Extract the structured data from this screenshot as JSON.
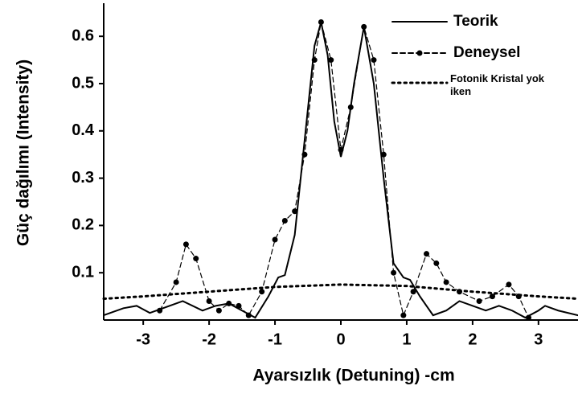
{
  "chart_data": {
    "type": "line",
    "xlabel": "Ayarsızlık (Detuning) -cm",
    "ylabel": "Güç dağılımı (Intensity)",
    "xlim": [
      -3.6,
      3.6
    ],
    "ylim": [
      0,
      0.67
    ],
    "xticks": [
      -3,
      -2,
      -1,
      0,
      1,
      2,
      3
    ],
    "yticks": [
      0.1,
      0.2,
      0.3,
      0.4,
      0.5,
      0.6
    ],
    "legend": "upper right",
    "series": [
      {
        "name": "Teorik",
        "color": "#000000",
        "style": "solid",
        "x": [
          -3.6,
          -3.3,
          -3.1,
          -2.9,
          -2.7,
          -2.4,
          -2.1,
          -1.9,
          -1.7,
          -1.5,
          -1.3,
          -1.1,
          -0.95,
          -0.85,
          -0.7,
          -0.55,
          -0.4,
          -0.3,
          -0.2,
          -0.1,
          0,
          0.1,
          0.2,
          0.35,
          0.5,
          0.65,
          0.8,
          0.95,
          1.05,
          1.2,
          1.4,
          1.6,
          1.8,
          2.0,
          2.2,
          2.4,
          2.6,
          2.8,
          3.0,
          3.1,
          3.3,
          3.6
        ],
        "values": [
          0.01,
          0.025,
          0.03,
          0.015,
          0.025,
          0.04,
          0.02,
          0.03,
          0.035,
          0.02,
          0.005,
          0.05,
          0.09,
          0.095,
          0.18,
          0.38,
          0.58,
          0.63,
          0.56,
          0.42,
          0.345,
          0.4,
          0.5,
          0.62,
          0.5,
          0.3,
          0.12,
          0.09,
          0.085,
          0.05,
          0.01,
          0.02,
          0.04,
          0.03,
          0.02,
          0.03,
          0.02,
          0.005,
          0.02,
          0.03,
          0.02,
          0.01
        ]
      },
      {
        "name": "Deneysel",
        "color": "#000000",
        "style": "dashed",
        "x": [
          -2.75,
          -2.5,
          -2.35,
          -2.2,
          -2.0,
          -1.85,
          -1.7,
          -1.55,
          -1.4,
          -1.2,
          -1.0,
          -0.85,
          -0.7,
          -0.55,
          -0.4,
          -0.3,
          -0.15,
          0,
          0.15,
          0.35,
          0.5,
          0.65,
          0.8,
          0.95,
          1.1,
          1.3,
          1.45,
          1.6,
          1.8,
          2.1,
          2.3,
          2.55,
          2.7,
          2.85
        ],
        "values": [
          0.02,
          0.08,
          0.16,
          0.13,
          0.04,
          0.02,
          0.035,
          0.03,
          0.01,
          0.06,
          0.17,
          0.21,
          0.23,
          0.35,
          0.55,
          0.63,
          0.55,
          0.36,
          0.45,
          0.62,
          0.55,
          0.35,
          0.1,
          0.01,
          0.06,
          0.14,
          0.12,
          0.08,
          0.06,
          0.04,
          0.05,
          0.075,
          0.05,
          0.005
        ]
      },
      {
        "name": "Fotonik Kristal yok iken",
        "color": "#000000",
        "style": "dotted",
        "x": [
          -3.6,
          -3,
          -2,
          -1,
          0,
          1,
          2,
          3,
          3.6
        ],
        "values": [
          0.045,
          0.05,
          0.06,
          0.07,
          0.075,
          0.072,
          0.06,
          0.05,
          0.045
        ]
      }
    ]
  }
}
